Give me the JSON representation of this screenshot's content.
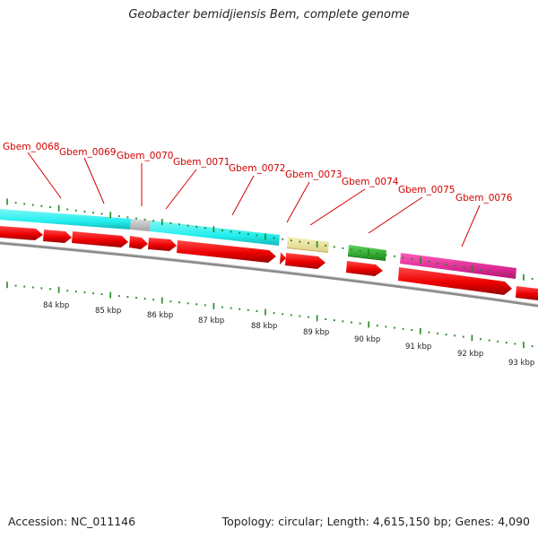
{
  "title": "Geobacter bemidjiensis Bem, complete genome",
  "accession": "Accession: NC_011146",
  "stats": "Topology: circular; Length: 4,615,150 bp; Genes: 4,090",
  "gene_labels": [
    "Gbem_0068",
    "Gbem_0069",
    "Gbem_0070",
    "Gbem_0071",
    "Gbem_0072",
    "Gbem_0073",
    "Gbem_0074",
    "Gbem_0075",
    "Gbem_0076"
  ],
  "kbp_labels": [
    "84 kbp",
    "85 kbp",
    "86 kbp",
    "87 kbp",
    "88 kbp",
    "89 kbp",
    "90 kbp",
    "91 kbp",
    "92 kbp",
    "93 kbp"
  ],
  "colors": {
    "cds_arrow": "#ee0000",
    "feature_cyan": "#22eeee",
    "feature_gray": "#b8b8b8",
    "feature_khaki": "#eee499",
    "feature_green": "#22bb22",
    "feature_magenta": "#ee1199",
    "gene_label": "#d40000",
    "tick": "#228822",
    "backbone": "#888888"
  }
}
